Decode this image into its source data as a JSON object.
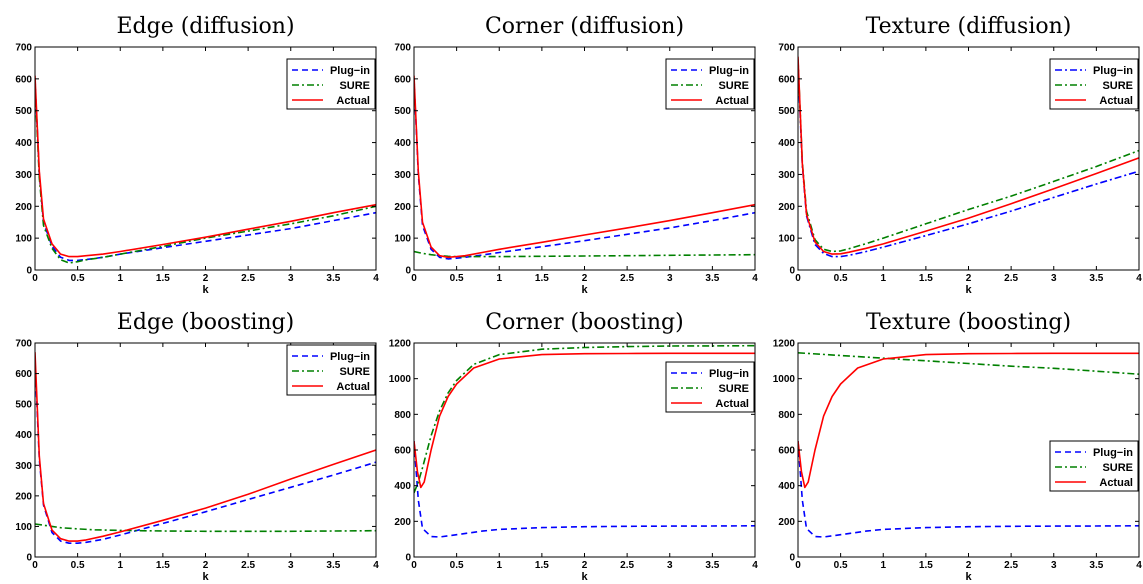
{
  "figure": {
    "xlabel": "k",
    "legend": [
      "Plug−in",
      "SURE",
      "Actual"
    ],
    "colors": {
      "plugin": "#0000ff",
      "sure": "#008000",
      "actual": "#ff0000"
    }
  },
  "chart_data": [
    {
      "type": "line",
      "title": "Edge (diffusion)",
      "xlabel": "k",
      "ylabel": "",
      "xlim": [
        0,
        4
      ],
      "ylim": [
        0,
        700
      ],
      "xticks": [
        0,
        0.5,
        1,
        1.5,
        2,
        2.5,
        3,
        3.5,
        4
      ],
      "yticks": [
        0,
        100,
        200,
        300,
        400,
        500,
        600,
        700
      ],
      "legend_position": "top-right",
      "series": [
        {
          "name": "Plug−in",
          "style": "dashed",
          "color": "#0000ff",
          "x": [
            0,
            0.05,
            0.1,
            0.2,
            0.3,
            0.4,
            0.5,
            0.6,
            0.8,
            1,
            1.5,
            2,
            2.5,
            3,
            3.5,
            4
          ],
          "y": [
            600,
            300,
            150,
            75,
            40,
            30,
            30,
            33,
            40,
            50,
            70,
            90,
            110,
            130,
            155,
            180
          ]
        },
        {
          "name": "SURE",
          "style": "dashdot",
          "color": "#008000",
          "x": [
            0,
            0.05,
            0.1,
            0.2,
            0.3,
            0.4,
            0.5,
            0.6,
            0.8,
            1,
            1.5,
            2,
            2.5,
            3,
            3.5,
            4
          ],
          "y": [
            580,
            290,
            140,
            68,
            32,
            22,
            26,
            32,
            40,
            50,
            74,
            100,
            122,
            145,
            170,
            200
          ]
        },
        {
          "name": "Actual",
          "style": "solid",
          "color": "#ff0000",
          "x": [
            0,
            0.05,
            0.1,
            0.2,
            0.3,
            0.4,
            0.5,
            0.6,
            0.8,
            1,
            1.5,
            2,
            2.5,
            3,
            3.5,
            4
          ],
          "y": [
            610,
            310,
            160,
            82,
            50,
            42,
            42,
            45,
            50,
            58,
            80,
            103,
            128,
            153,
            180,
            205
          ]
        }
      ]
    },
    {
      "type": "line",
      "title": "Corner (diffusion)",
      "xlabel": "k",
      "ylabel": "",
      "xlim": [
        0,
        4
      ],
      "ylim": [
        0,
        700
      ],
      "xticks": [
        0,
        0.5,
        1,
        1.5,
        2,
        2.5,
        3,
        3.5,
        4
      ],
      "yticks": [
        0,
        100,
        200,
        300,
        400,
        500,
        600,
        700
      ],
      "legend_position": "top-right",
      "series": [
        {
          "name": "Plug−in",
          "style": "dashed",
          "color": "#0000ff",
          "x": [
            0,
            0.05,
            0.1,
            0.2,
            0.3,
            0.4,
            0.5,
            0.6,
            0.8,
            1,
            1.5,
            2,
            2.5,
            3,
            3.5,
            4
          ],
          "y": [
            600,
            300,
            140,
            65,
            40,
            35,
            37,
            40,
            47,
            55,
            73,
            92,
            112,
            132,
            155,
            180
          ]
        },
        {
          "name": "SURE",
          "style": "dashdot",
          "color": "#008000",
          "x": [
            0,
            0.1,
            0.2,
            0.3,
            0.4,
            0.5,
            0.6,
            0.8,
            1,
            1.5,
            2,
            2.5,
            3,
            3.5,
            4
          ],
          "y": [
            58,
            52,
            48,
            45,
            43,
            42,
            42,
            42,
            42,
            43,
            44,
            45,
            46,
            47,
            48
          ]
        },
        {
          "name": "Actual",
          "style": "solid",
          "color": "#ff0000",
          "x": [
            0,
            0.05,
            0.1,
            0.2,
            0.3,
            0.4,
            0.5,
            0.6,
            0.8,
            1,
            1.5,
            2,
            2.5,
            3,
            3.5,
            4
          ],
          "y": [
            610,
            310,
            150,
            72,
            45,
            40,
            42,
            45,
            55,
            65,
            87,
            110,
            132,
            155,
            180,
            205
          ]
        }
      ]
    },
    {
      "type": "line",
      "title": "Texture (diffusion)",
      "xlabel": "k",
      "ylabel": "",
      "xlim": [
        0,
        4
      ],
      "ylim": [
        0,
        700
      ],
      "xticks": [
        0,
        0.5,
        1,
        1.5,
        2,
        2.5,
        3,
        3.5,
        4
      ],
      "yticks": [
        0,
        100,
        200,
        300,
        400,
        500,
        600,
        700
      ],
      "legend_position": "top-right",
      "series": [
        {
          "name": "Plug−in",
          "style": "dashdot",
          "color": "#0000ff",
          "x": [
            0,
            0.05,
            0.1,
            0.2,
            0.3,
            0.4,
            0.5,
            0.6,
            0.8,
            1,
            1.5,
            2,
            2.5,
            3,
            3.5,
            4
          ],
          "y": [
            640,
            330,
            170,
            80,
            52,
            42,
            42,
            46,
            58,
            72,
            108,
            145,
            185,
            228,
            270,
            310
          ]
        },
        {
          "name": "SURE",
          "style": "dashdot",
          "color": "#008000",
          "x": [
            0,
            0.05,
            0.1,
            0.2,
            0.3,
            0.4,
            0.5,
            0.6,
            0.8,
            1,
            1.5,
            2,
            2.5,
            3,
            3.5,
            4
          ],
          "y": [
            660,
            340,
            185,
            95,
            65,
            58,
            60,
            67,
            83,
            100,
            145,
            190,
            232,
            278,
            325,
            375
          ]
        },
        {
          "name": "Actual",
          "style": "solid",
          "color": "#ff0000",
          "x": [
            0,
            0.05,
            0.1,
            0.2,
            0.3,
            0.4,
            0.5,
            0.6,
            0.8,
            1,
            1.5,
            2,
            2.5,
            3,
            3.5,
            4
          ],
          "y": [
            670,
            335,
            175,
            88,
            58,
            50,
            51,
            56,
            68,
            82,
            122,
            163,
            208,
            255,
            303,
            352
          ]
        }
      ]
    },
    {
      "type": "line",
      "title": "Edge (boosting)",
      "xlabel": "k",
      "ylabel": "",
      "xlim": [
        0,
        4
      ],
      "ylim": [
        0,
        700
      ],
      "xticks": [
        0,
        0.5,
        1,
        1.5,
        2,
        2.5,
        3,
        3.5,
        4
      ],
      "yticks": [
        0,
        100,
        200,
        300,
        400,
        500,
        600,
        700
      ],
      "legend_position": "top-right",
      "series": [
        {
          "name": "Plug−in",
          "style": "dashed",
          "color": "#0000ff",
          "x": [
            0,
            0.05,
            0.1,
            0.2,
            0.3,
            0.4,
            0.5,
            0.6,
            0.8,
            1,
            1.5,
            2,
            2.5,
            3,
            3.5,
            4
          ],
          "y": [
            640,
            320,
            170,
            80,
            52,
            45,
            45,
            48,
            58,
            72,
            110,
            148,
            188,
            228,
            268,
            310
          ]
        },
        {
          "name": "SURE",
          "style": "dashdot",
          "color": "#008000",
          "x": [
            0,
            0.1,
            0.2,
            0.3,
            0.5,
            0.7,
            1,
            1.5,
            2,
            2.5,
            3,
            3.5,
            4
          ],
          "y": [
            108,
            104,
            100,
            96,
            92,
            89,
            87,
            85,
            84,
            84,
            84,
            85,
            86
          ]
        },
        {
          "name": "Actual",
          "style": "solid",
          "color": "#ff0000",
          "x": [
            0,
            0.05,
            0.1,
            0.2,
            0.3,
            0.4,
            0.5,
            0.6,
            0.8,
            1,
            1.5,
            2,
            2.5,
            3,
            3.5,
            4
          ],
          "y": [
            670,
            330,
            175,
            88,
            60,
            52,
            52,
            56,
            68,
            82,
            120,
            160,
            205,
            255,
            303,
            350
          ]
        }
      ]
    },
    {
      "type": "line",
      "title": "Corner (boosting)",
      "xlabel": "k",
      "ylabel": "",
      "xlim": [
        0,
        4
      ],
      "ylim": [
        0,
        1200
      ],
      "xticks": [
        0,
        0.5,
        1,
        1.5,
        2,
        2.5,
        3,
        3.5,
        4
      ],
      "yticks": [
        0,
        200,
        400,
        600,
        800,
        1000,
        1200
      ],
      "legend_position": "right",
      "series": [
        {
          "name": "Plug−in",
          "style": "dashed",
          "color": "#0000ff",
          "x": [
            0,
            0.05,
            0.1,
            0.2,
            0.3,
            0.5,
            0.8,
            1,
            1.5,
            2,
            2.5,
            3,
            3.5,
            4
          ],
          "y": [
            650,
            320,
            160,
            115,
            112,
            125,
            145,
            155,
            165,
            170,
            172,
            173,
            174,
            175
          ]
        },
        {
          "name": "SURE",
          "style": "dashdot",
          "color": "#008000",
          "x": [
            0,
            0.05,
            0.1,
            0.2,
            0.3,
            0.4,
            0.5,
            0.7,
            1,
            1.5,
            2,
            2.5,
            3,
            3.5,
            4
          ],
          "y": [
            360,
            420,
            500,
            680,
            820,
            920,
            990,
            1080,
            1135,
            1165,
            1175,
            1180,
            1183,
            1184,
            1185
          ]
        },
        {
          "name": "Actual",
          "style": "solid",
          "color": "#ff0000",
          "x": [
            0,
            0.04,
            0.08,
            0.12,
            0.2,
            0.3,
            0.4,
            0.5,
            0.7,
            1,
            1.5,
            2,
            2.5,
            3,
            3.5,
            4
          ],
          "y": [
            650,
            480,
            390,
            420,
            600,
            790,
            900,
            970,
            1060,
            1110,
            1135,
            1140,
            1141,
            1142,
            1142,
            1142
          ]
        }
      ]
    },
    {
      "type": "line",
      "title": "Texture (boosting)",
      "xlabel": "k",
      "ylabel": "",
      "xlim": [
        0,
        4
      ],
      "ylim": [
        0,
        1200
      ],
      "xticks": [
        0,
        0.5,
        1,
        1.5,
        2,
        2.5,
        3,
        3.5,
        4
      ],
      "yticks": [
        0,
        200,
        400,
        600,
        800,
        1000,
        1200
      ],
      "legend_position": "right",
      "series": [
        {
          "name": "Plug−in",
          "style": "dashed",
          "color": "#0000ff",
          "x": [
            0,
            0.05,
            0.1,
            0.2,
            0.3,
            0.5,
            0.8,
            1,
            1.5,
            2,
            2.5,
            3,
            3.5,
            4
          ],
          "y": [
            650,
            320,
            160,
            115,
            112,
            125,
            145,
            155,
            165,
            170,
            172,
            173,
            174,
            175
          ]
        },
        {
          "name": "SURE",
          "style": "dashdot",
          "color": "#008000",
          "x": [
            0,
            0.5,
            1,
            1.5,
            2,
            2.5,
            3,
            3.5,
            4
          ],
          "y": [
            1145,
            1130,
            1115,
            1100,
            1085,
            1070,
            1058,
            1042,
            1025
          ]
        },
        {
          "name": "Actual",
          "style": "solid",
          "color": "#ff0000",
          "x": [
            0,
            0.04,
            0.08,
            0.12,
            0.2,
            0.3,
            0.4,
            0.5,
            0.7,
            1,
            1.5,
            2,
            2.5,
            3,
            3.5,
            4
          ],
          "y": [
            650,
            480,
            390,
            420,
            600,
            790,
            900,
            970,
            1060,
            1110,
            1135,
            1140,
            1141,
            1142,
            1142,
            1142
          ]
        }
      ]
    }
  ]
}
